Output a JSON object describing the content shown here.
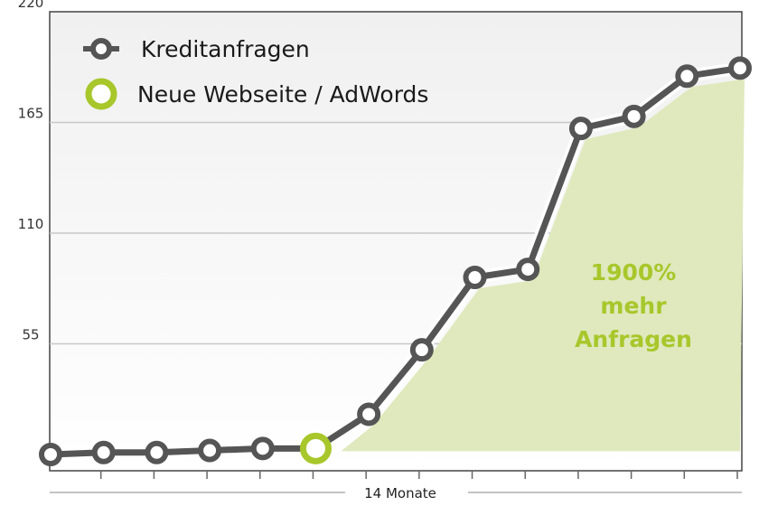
{
  "chart_data": {
    "type": "line",
    "title": "",
    "xlabel": "14 Monate",
    "ylabel": "",
    "ylim": [
      0,
      220
    ],
    "yticks": [
      55,
      110,
      165,
      220
    ],
    "x": [
      1,
      2,
      3,
      4,
      5,
      6,
      7,
      8,
      9,
      10,
      11,
      12,
      13,
      14
    ],
    "grid": "horizontal",
    "legend_position": "top-left",
    "series": [
      {
        "name": "Kreditanfragen",
        "values": [
          0,
          1,
          1,
          2,
          3,
          3,
          20,
          52,
          88,
          92,
          162,
          168,
          188,
          192
        ],
        "color": "#555555"
      }
    ],
    "highlight": {
      "name": "Neue Webseite / AdWords",
      "index": 5,
      "color": "#a7c72b"
    },
    "annotation": {
      "lines": [
        "1900%",
        "mehr",
        "Anfragen"
      ],
      "color": "#a7c72b",
      "area_color": "#dfe9bd"
    }
  }
}
